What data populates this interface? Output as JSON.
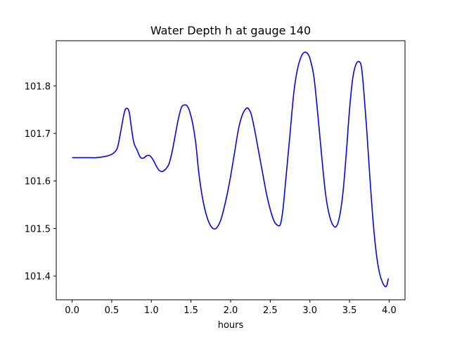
{
  "chart_data": {
    "type": "line",
    "title": "Water Depth h at gauge 140",
    "xlabel": "hours",
    "ylabel": "",
    "xlim": [
      -0.2,
      4.2
    ],
    "ylim": [
      101.35,
      101.895
    ],
    "x_ticks": [
      0.0,
      0.5,
      1.0,
      1.5,
      2.0,
      2.5,
      3.0,
      3.5,
      4.0
    ],
    "x_tick_labels": [
      "0.0",
      "0.5",
      "1.0",
      "1.5",
      "2.0",
      "2.5",
      "3.0",
      "3.5",
      "4.0"
    ],
    "y_ticks": [
      101.4,
      101.5,
      101.6,
      101.7,
      101.8
    ],
    "y_tick_labels": [
      "101.4",
      "101.5",
      "101.6",
      "101.7",
      "101.8"
    ],
    "grid": false,
    "series": [
      {
        "color": "#0000ff",
        "x": [
          0.0,
          0.1,
          0.2,
          0.3,
          0.4,
          0.45,
          0.5,
          0.55,
          0.58,
          0.62,
          0.66,
          0.69,
          0.72,
          0.75,
          0.78,
          0.82,
          0.86,
          0.9,
          0.94,
          0.98,
          1.02,
          1.06,
          1.1,
          1.14,
          1.18,
          1.22,
          1.26,
          1.3,
          1.34,
          1.38,
          1.42,
          1.45,
          1.48,
          1.52,
          1.56,
          1.6,
          1.65,
          1.7,
          1.75,
          1.8,
          1.84,
          1.88,
          1.92,
          1.96,
          2.0,
          2.05,
          2.1,
          2.15,
          2.2,
          2.23,
          2.26,
          2.3,
          2.35,
          2.4,
          2.45,
          2.5,
          2.55,
          2.6,
          2.63,
          2.66,
          2.7,
          2.75,
          2.8,
          2.85,
          2.9,
          2.94,
          2.97,
          3.0,
          3.05,
          3.1,
          3.15,
          3.2,
          3.25,
          3.3,
          3.34,
          3.38,
          3.42,
          3.46,
          3.5,
          3.54,
          3.58,
          3.62,
          3.65,
          3.68,
          3.72,
          3.76,
          3.8,
          3.84,
          3.88,
          3.92,
          3.95,
          3.97,
          3.99
        ],
        "y": [
          101.649,
          101.649,
          101.649,
          101.649,
          101.651,
          101.653,
          101.656,
          101.663,
          101.675,
          101.71,
          101.745,
          101.753,
          101.745,
          101.71,
          101.68,
          101.665,
          101.65,
          101.648,
          101.653,
          101.653,
          101.645,
          101.632,
          101.622,
          101.62,
          101.625,
          101.635,
          101.66,
          101.695,
          101.73,
          101.755,
          101.76,
          101.758,
          101.748,
          101.722,
          101.68,
          101.615,
          101.56,
          101.525,
          101.505,
          101.499,
          101.505,
          101.52,
          101.545,
          101.575,
          101.61,
          101.66,
          101.71,
          101.74,
          101.753,
          101.751,
          101.74,
          101.71,
          101.665,
          101.62,
          101.575,
          101.54,
          101.515,
          101.506,
          101.51,
          101.54,
          101.61,
          101.7,
          101.79,
          101.84,
          101.865,
          101.871,
          101.868,
          101.858,
          101.82,
          101.74,
          101.65,
          101.57,
          101.525,
          101.505,
          101.506,
          101.53,
          101.58,
          101.66,
          101.75,
          101.815,
          101.845,
          101.851,
          101.84,
          101.79,
          101.7,
          101.6,
          101.51,
          101.445,
          101.405,
          101.385,
          101.378,
          101.38,
          101.395
        ]
      }
    ]
  }
}
